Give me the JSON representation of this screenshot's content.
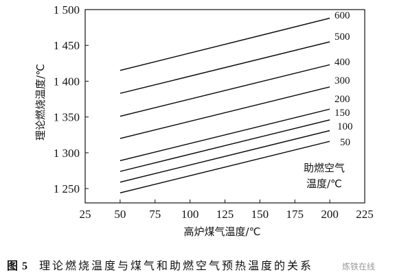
{
  "chart_data": {
    "type": "line",
    "xlabel": "高炉煤气温度/℃",
    "ylabel": "理论燃烧温度/℃",
    "xlim": [
      25,
      225
    ],
    "ylim": [
      1230,
      1500
    ],
    "x_ticks": [
      25,
      50,
      75,
      100,
      125,
      150,
      175,
      200,
      225
    ],
    "x_tick_labels": [
      "25",
      "50",
      "75",
      "100",
      "125",
      "150",
      "175",
      "200",
      "225"
    ],
    "y_ticks": [
      1250,
      1300,
      1350,
      1400,
      1450,
      1500
    ],
    "y_tick_labels": [
      "1 250",
      "1 300",
      "1 350",
      "1 400",
      "1 450",
      "1 500"
    ],
    "legend_title_lines": [
      "助燃空气",
      "温度/℃"
    ],
    "grid": false,
    "series": [
      {
        "name": "600",
        "x": [
          50,
          200
        ],
        "y": [
          1415,
          1488
        ]
      },
      {
        "name": "500",
        "x": [
          50,
          200
        ],
        "y": [
          1383,
          1455
        ]
      },
      {
        "name": "400",
        "x": [
          50,
          200
        ],
        "y": [
          1351,
          1423
        ]
      },
      {
        "name": "300",
        "x": [
          50,
          200
        ],
        "y": [
          1320,
          1392
        ]
      },
      {
        "name": "200",
        "x": [
          50,
          200
        ],
        "y": [
          1289,
          1361
        ]
      },
      {
        "name": "150",
        "x": [
          50,
          200
        ],
        "y": [
          1274,
          1346
        ]
      },
      {
        "name": "100",
        "x": [
          50,
          200
        ],
        "y": [
          1259,
          1331
        ]
      },
      {
        "name": "50",
        "x": [
          50,
          200
        ],
        "y": [
          1244,
          1316
        ]
      }
    ]
  },
  "caption": {
    "figure_number": "图 5",
    "text": "理论燃烧温度与煤气和助燃空气预热温度的关系"
  },
  "watermark": "炼铁在线"
}
